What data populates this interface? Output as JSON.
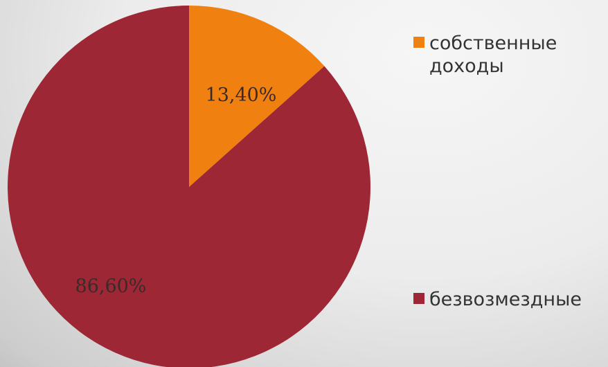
{
  "chart_data": {
    "type": "pie",
    "title": "",
    "slices": [
      {
        "label": "собственные доходы",
        "legend_lines": [
          "собственные",
          "доходы"
        ],
        "value": 13.4,
        "value_label": "13,40%",
        "color": "#f08110"
      },
      {
        "label": "безвозмездные",
        "legend_lines": [
          "безвозмездные"
        ],
        "value": 86.6,
        "value_label": "86,60%",
        "color": "#9e2735"
      }
    ],
    "legend_position": "right",
    "start_angle_deg": 0,
    "direction": "clockwise"
  }
}
